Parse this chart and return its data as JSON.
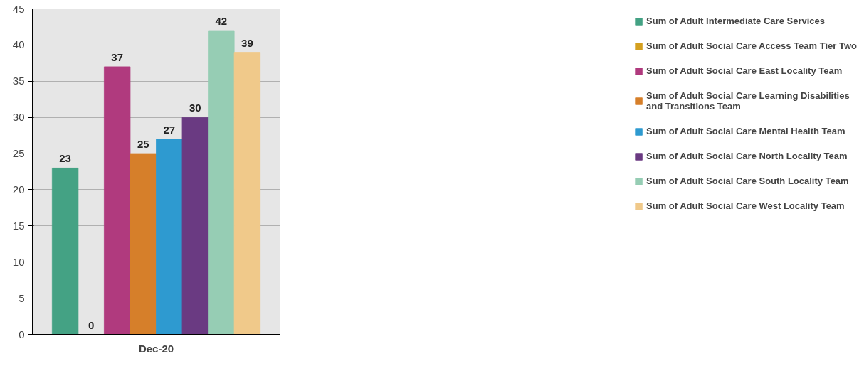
{
  "chart_data": {
    "type": "bar",
    "categories": [
      "Dec-20"
    ],
    "series": [
      {
        "name": "Sum of Adult Intermediate Care Services",
        "color": "#44a284",
        "values": [
          23
        ]
      },
      {
        "name": "Sum of Adult Social Care Access Team Tier Two",
        "color": "#d4a020",
        "values": [
          0
        ]
      },
      {
        "name": "Sum of Adult Social Care East Locality Team",
        "color": "#b03a7e",
        "values": [
          37
        ]
      },
      {
        "name": "Sum of Adult Social Care Learning Disabilities and Transitions Team",
        "color": "#d67f2a",
        "values": [
          25
        ]
      },
      {
        "name": "Sum of Adult Social Care Mental Health Team",
        "color": "#2e9ad0",
        "values": [
          27
        ]
      },
      {
        "name": "Sum of Adult Social Care North Locality Team",
        "color": "#6a3a82",
        "values": [
          30
        ]
      },
      {
        "name": "Sum of Adult Social Care South Locality Team",
        "color": "#96cdb4",
        "values": [
          42
        ]
      },
      {
        "name": "Sum of Adult Social Care West Locality Team",
        "color": "#f0c98a",
        "values": [
          39
        ]
      }
    ],
    "ylim": [
      0,
      45
    ],
    "yticks": [
      0,
      5,
      10,
      15,
      20,
      25,
      30,
      35,
      40,
      45
    ],
    "grid": "y",
    "legend": "right",
    "data_labels": true
  }
}
